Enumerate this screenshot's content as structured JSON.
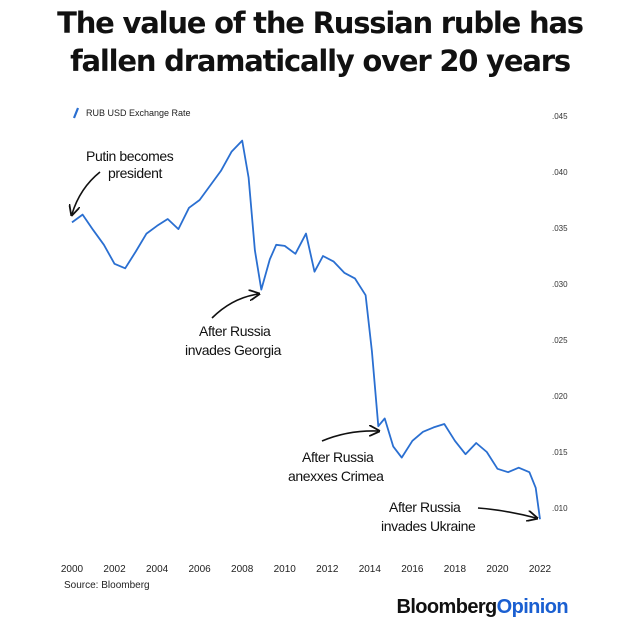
{
  "title": {
    "line1": "The value of the Russian ruble has",
    "line2": "fallen dramatically over 20 years"
  },
  "chart_data": {
    "type": "line",
    "title": "The value of the Russian ruble has fallen dramatically over 20 years",
    "legend": {
      "label": "RUB USD Exchange Rate",
      "placement": "top-left",
      "color": "#2a6fd1"
    },
    "xlabel": "",
    "ylabel": "",
    "xlim": [
      2000,
      2022
    ],
    "ylim": [
      0.005,
      0.045
    ],
    "x_ticks": [
      "2000",
      "2002",
      "2004",
      "2006",
      "2008",
      "2010",
      "2012",
      "2014",
      "2016",
      "2018",
      "2020",
      "2022"
    ],
    "y_ticks": [
      ".010",
      ".015",
      ".020",
      ".025",
      ".030",
      ".035",
      ".040",
      ".045"
    ],
    "y_tick_values": [
      0.01,
      0.015,
      0.02,
      0.025,
      0.03,
      0.035,
      0.04,
      0.045
    ],
    "series": [
      {
        "name": "RUB USD Exchange Rate",
        "color": "#2a6fd1",
        "x": [
          2000.0,
          2000.5,
          2001.0,
          2001.5,
          2002.0,
          2002.5,
          2003.0,
          2003.5,
          2004.0,
          2004.5,
          2005.0,
          2005.5,
          2006.0,
          2006.5,
          2007.0,
          2007.5,
          2008.0,
          2008.3,
          2008.6,
          2008.9,
          2009.3,
          2009.6,
          2010.0,
          2010.5,
          2011.0,
          2011.4,
          2011.8,
          2012.3,
          2012.8,
          2013.3,
          2013.8,
          2014.1,
          2014.4,
          2014.7,
          2015.1,
          2015.5,
          2016.0,
          2016.5,
          2017.0,
          2017.5,
          2018.0,
          2018.5,
          2019.0,
          2019.5,
          2020.0,
          2020.5,
          2021.0,
          2021.5,
          2021.8,
          2022.0
        ],
        "y": [
          0.0355,
          0.0362,
          0.0348,
          0.0335,
          0.0318,
          0.0314,
          0.0329,
          0.0345,
          0.0352,
          0.0358,
          0.0349,
          0.0368,
          0.0375,
          0.0388,
          0.0401,
          0.0418,
          0.0428,
          0.0395,
          0.033,
          0.0295,
          0.0322,
          0.0335,
          0.0334,
          0.0327,
          0.0345,
          0.0311,
          0.0325,
          0.032,
          0.031,
          0.0305,
          0.029,
          0.024,
          0.0173,
          0.018,
          0.0155,
          0.0145,
          0.016,
          0.0168,
          0.0172,
          0.0175,
          0.016,
          0.0148,
          0.0158,
          0.015,
          0.0135,
          0.0132,
          0.0136,
          0.0132,
          0.0118,
          0.009
        ]
      }
    ],
    "annotations": [
      {
        "id": "putin",
        "line1": "Putin becomes",
        "line2": "president",
        "x": 2000.0,
        "y": 0.0355
      },
      {
        "id": "georgia",
        "line1": "After Russia",
        "line2": "invades Georgia",
        "x": 2008.9,
        "y": 0.0295
      },
      {
        "id": "crimea",
        "line1": "After Russia",
        "line2": "anexxes Crimea",
        "x": 2014.4,
        "y": 0.0173
      },
      {
        "id": "ukraine",
        "line1": "After Russia",
        "line2": "invades Ukraine",
        "x": 2022.0,
        "y": 0.009
      }
    ],
    "grid": false
  },
  "source": "Source: Bloomberg",
  "brand": {
    "part1": "Bloomberg",
    "part2": "Opinion"
  }
}
